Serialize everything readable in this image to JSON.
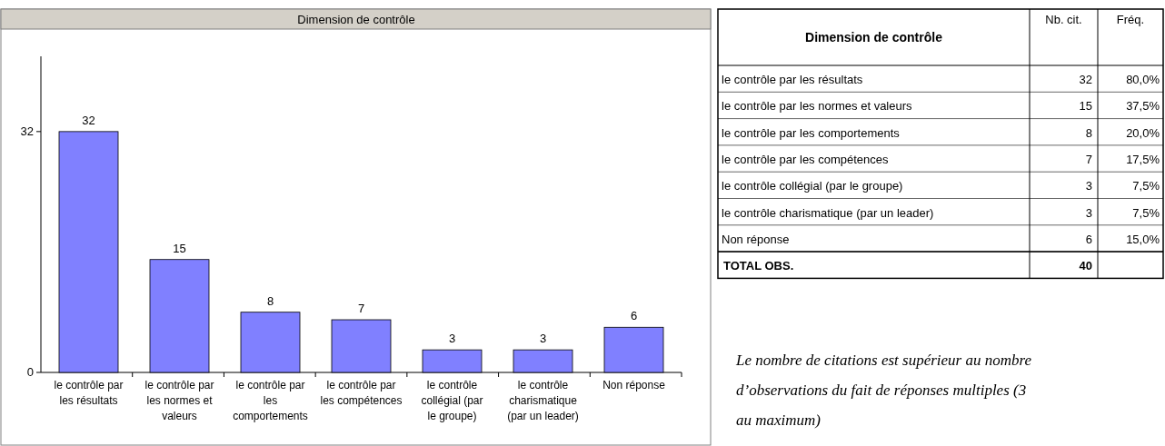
{
  "chart_data": [
    {
      "type": "bar",
      "title": "Dimension de contrôle",
      "categories": [
        "le contrôle par les résultats",
        "le contrôle par les normes et valeurs",
        "le contrôle par les comportements",
        "le contrôle par les compétences",
        "le contrôle collégial (par le groupe)",
        "le contrôle charismatique (par un leader)",
        "Non réponse"
      ],
      "values": [
        32,
        15,
        8,
        7,
        3,
        3,
        6
      ],
      "color": "#8080ff",
      "ylim": [
        0,
        42
      ],
      "yticks": [
        0,
        32
      ],
      "data_labels": true
    },
    {
      "type": "other",
      "title": "Dimension de contrôle",
      "categories": [
        "le contrôle par les résultats",
        "le contrôle par les normes et valeurs",
        "le contrôle par les comportements",
        "le contrôle par les compétences",
        "le contrôle collégial (par le groupe)",
        "le contrôle charismatique (par un leader)",
        "Non réponse"
      ],
      "series": [
        {
          "name": "Nb. cit.",
          "values": [
            32,
            15,
            8,
            7,
            3,
            3,
            6
          ]
        },
        {
          "name": "Fréq.",
          "values": [
            80,
            37.5,
            20,
            17.5,
            7.5,
            7.5,
            15
          ],
          "value_labels": [
            "80,0%",
            "37,5%",
            "20,0%",
            "17,5%",
            "7,5%",
            "7,5%",
            "15,0%"
          ]
        }
      ],
      "totals": [
        "40"
      ],
      "data_labels": true,
      "annotations": [
        "TOTAL OBS.",
        "Le nombre de citations est supérieur au nombre d’observations du fait de réponses multiples (3 au maximum)"
      ]
    }
  ]
}
